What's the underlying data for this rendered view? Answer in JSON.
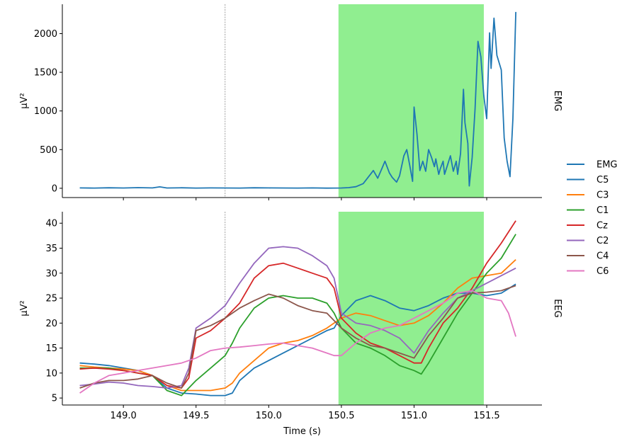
{
  "chart_data": [
    {
      "type": "line",
      "panel_label": "EMG",
      "ylabel": "µV²",
      "xlim": [
        148.58,
        151.88
      ],
      "ylim": [
        -120,
        2380
      ],
      "yticks": [
        0,
        500,
        1000,
        1500,
        2000
      ],
      "xticks": [
        149.0,
        149.5,
        150.0,
        150.5,
        151.0,
        151.5
      ],
      "show_xticklabels": false,
      "vline_x": 149.7,
      "highlight_span": [
        150.48,
        151.48
      ],
      "highlight_color": "#90ee90",
      "series": [
        {
          "name": "EMG",
          "color": "#1f77b4",
          "x": [
            148.7,
            148.8,
            148.9,
            149.0,
            149.1,
            149.2,
            149.25,
            149.3,
            149.4,
            149.5,
            149.6,
            149.7,
            149.8,
            149.9,
            150.0,
            150.1,
            150.2,
            150.3,
            150.4,
            150.5,
            150.55,
            150.6,
            150.65,
            150.7,
            150.72,
            150.75,
            150.78,
            150.8,
            150.83,
            150.85,
            150.88,
            150.9,
            150.93,
            150.95,
            150.97,
            150.99,
            151.0,
            151.02,
            151.04,
            151.06,
            151.08,
            151.1,
            151.12,
            151.14,
            151.15,
            151.17,
            151.18,
            151.2,
            151.21,
            151.23,
            151.25,
            151.27,
            151.29,
            151.3,
            151.32,
            151.34,
            151.35,
            151.37,
            151.38,
            151.4,
            151.42,
            151.44,
            151.46,
            151.48,
            151.5,
            151.52,
            151.53,
            151.55,
            151.57,
            151.6,
            151.62,
            151.64,
            151.66,
            151.68,
            151.7
          ],
          "y": [
            5,
            3,
            6,
            4,
            8,
            5,
            18,
            4,
            6,
            3,
            5,
            4,
            3,
            6,
            5,
            4,
            3,
            5,
            2,
            4,
            8,
            20,
            60,
            180,
            230,
            130,
            260,
            350,
            200,
            140,
            80,
            160,
            420,
            500,
            300,
            90,
            1050,
            700,
            230,
            350,
            220,
            500,
            400,
            280,
            380,
            180,
            250,
            350,
            180,
            300,
            420,
            220,
            350,
            180,
            450,
            1280,
            850,
            580,
            30,
            400,
            1030,
            1900,
            1700,
            1200,
            900,
            2010,
            1550,
            2200,
            1720,
            1530,
            650,
            350,
            150,
            900,
            2280
          ]
        }
      ]
    },
    {
      "type": "line",
      "panel_label": "EEG",
      "xlabel": "Time (s)",
      "ylabel": "µV²",
      "xlim": [
        148.58,
        151.88
      ],
      "ylim": [
        3.6,
        42.3
      ],
      "yticks": [
        5,
        10,
        15,
        20,
        25,
        30,
        35,
        40
      ],
      "xticks": [
        149.0,
        149.5,
        150.0,
        150.5,
        151.0,
        151.5
      ],
      "xticklabels": [
        "149.0",
        "149.5",
        "150.0",
        "150.5",
        "151.0",
        "151.5"
      ],
      "vline_x": 149.7,
      "highlight_span": [
        150.48,
        151.48
      ],
      "highlight_color": "#90ee90",
      "series": [
        {
          "name": "C5",
          "color": "#1f77b4",
          "x": [
            148.7,
            148.8,
            148.9,
            149.0,
            149.1,
            149.2,
            149.3,
            149.4,
            149.5,
            149.6,
            149.7,
            149.75,
            149.8,
            149.9,
            150.0,
            150.1,
            150.2,
            150.3,
            150.4,
            150.45,
            150.5,
            150.6,
            150.7,
            150.8,
            150.9,
            151.0,
            151.1,
            151.2,
            151.3,
            151.4,
            151.5,
            151.6,
            151.7
          ],
          "y": [
            12,
            11.8,
            11.5,
            11,
            10.5,
            9.5,
            7,
            6,
            5.8,
            5.5,
            5.5,
            6,
            8.5,
            11,
            12.5,
            14,
            15.5,
            17,
            18.5,
            19,
            21.5,
            24.5,
            25.5,
            24.5,
            23,
            22.5,
            23.5,
            25,
            26,
            26,
            25.5,
            26,
            27.8
          ]
        },
        {
          "name": "C3",
          "color": "#ff7f0e",
          "x": [
            148.7,
            148.8,
            148.9,
            149.0,
            149.1,
            149.2,
            149.3,
            149.4,
            149.5,
            149.6,
            149.7,
            149.75,
            149.8,
            149.9,
            150.0,
            150.1,
            150.2,
            150.3,
            150.4,
            150.45,
            150.5,
            150.6,
            150.7,
            150.8,
            150.9,
            151.0,
            151.1,
            151.2,
            151.3,
            151.4,
            151.5,
            151.6,
            151.7
          ],
          "y": [
            11.5,
            11.2,
            11,
            10.8,
            10.5,
            9.5,
            7.5,
            6.5,
            6.5,
            6.5,
            7,
            8,
            10,
            12.5,
            15,
            16,
            16.5,
            17.5,
            19,
            20,
            21,
            22,
            21.5,
            20.5,
            19.5,
            20,
            21.5,
            24,
            27,
            29,
            29.5,
            30,
            32.7
          ]
        },
        {
          "name": "C1",
          "color": "#2ca02c",
          "x": [
            148.7,
            148.8,
            148.9,
            149.0,
            149.1,
            149.2,
            149.3,
            149.4,
            149.5,
            149.6,
            149.7,
            149.75,
            149.8,
            149.9,
            150.0,
            150.1,
            150.2,
            150.3,
            150.4,
            150.45,
            150.5,
            150.6,
            150.7,
            150.8,
            150.9,
            151.0,
            151.05,
            151.1,
            151.2,
            151.3,
            151.4,
            151.5,
            151.6,
            151.7
          ],
          "y": [
            11,
            11,
            11,
            10.5,
            10,
            9.5,
            6.5,
            5.5,
            8.5,
            11,
            13.5,
            16,
            19,
            23,
            25,
            25.5,
            25,
            25,
            24,
            22,
            19,
            16,
            15,
            13.5,
            11.5,
            10.5,
            9.8,
            12,
            17,
            22,
            26,
            30,
            33,
            37.8
          ]
        },
        {
          "name": "Cz",
          "color": "#d62728",
          "x": [
            148.7,
            148.8,
            148.9,
            149.0,
            149.1,
            149.2,
            149.3,
            149.4,
            149.45,
            149.5,
            149.6,
            149.7,
            149.8,
            149.9,
            150.0,
            150.1,
            150.2,
            150.3,
            150.4,
            150.45,
            150.5,
            150.6,
            150.7,
            150.8,
            150.9,
            151.0,
            151.05,
            151.1,
            151.2,
            151.3,
            151.4,
            151.5,
            151.6,
            151.7
          ],
          "y": [
            10.8,
            11,
            10.8,
            10.5,
            10,
            9.5,
            7.5,
            7,
            9,
            17,
            18.5,
            21,
            24,
            29,
            31.5,
            32,
            31,
            30,
            29,
            27,
            21,
            18,
            16,
            15,
            13.5,
            12,
            12,
            15,
            20,
            23,
            27,
            32,
            36,
            40.5
          ]
        },
        {
          "name": "C2",
          "color": "#9467bd",
          "x": [
            148.7,
            148.8,
            148.9,
            149.0,
            149.1,
            149.2,
            149.3,
            149.4,
            149.45,
            149.5,
            149.6,
            149.7,
            149.8,
            149.9,
            150.0,
            150.1,
            150.2,
            150.3,
            150.4,
            150.45,
            150.5,
            150.6,
            150.7,
            150.8,
            150.9,
            151.0,
            151.1,
            151.2,
            151.3,
            151.4,
            151.5,
            151.6,
            151.7
          ],
          "y": [
            7.5,
            7.8,
            8.2,
            8,
            7.5,
            7.3,
            7,
            7.5,
            11,
            19,
            21,
            23.5,
            28,
            32,
            35,
            35.3,
            35,
            33.5,
            31.5,
            29,
            22,
            20,
            19.5,
            18.5,
            17,
            14,
            18.5,
            22,
            25,
            26.5,
            28,
            29.5,
            31
          ]
        },
        {
          "name": "C4",
          "color": "#8c564b",
          "x": [
            148.7,
            148.8,
            148.9,
            149.0,
            149.1,
            149.2,
            149.3,
            149.4,
            149.45,
            149.5,
            149.6,
            149.7,
            149.8,
            149.9,
            150.0,
            150.1,
            150.2,
            150.3,
            150.4,
            150.45,
            150.5,
            150.6,
            150.7,
            150.8,
            150.9,
            151.0,
            151.1,
            151.2,
            151.3,
            151.4,
            151.5,
            151.6,
            151.7
          ],
          "y": [
            7,
            8,
            8.5,
            8.5,
            8.8,
            9.5,
            8,
            7,
            10,
            18.5,
            19.5,
            21,
            23,
            24.5,
            25.8,
            25,
            23.5,
            22.5,
            22,
            20.5,
            19,
            17,
            15.5,
            15,
            14,
            13,
            17.5,
            21,
            25,
            26,
            26.2,
            26.5,
            27.5
          ]
        },
        {
          "name": "C6",
          "color": "#e377c2",
          "x": [
            148.7,
            148.8,
            148.9,
            149.0,
            149.1,
            149.2,
            149.3,
            149.4,
            149.5,
            149.6,
            149.7,
            149.8,
            149.9,
            150.0,
            150.1,
            150.2,
            150.3,
            150.4,
            150.45,
            150.5,
            150.6,
            150.7,
            150.8,
            150.9,
            151.0,
            151.1,
            151.2,
            151.3,
            151.4,
            151.5,
            151.6,
            151.65,
            151.7
          ],
          "y": [
            6,
            8,
            9.5,
            10,
            10.5,
            11,
            11.5,
            12,
            13,
            14.5,
            15,
            15.2,
            15.5,
            15.8,
            16,
            15.5,
            15,
            14,
            13.5,
            13.5,
            16,
            18,
            19,
            19.5,
            21,
            22.5,
            24,
            26,
            26.5,
            25,
            24.5,
            22,
            17.3
          ]
        }
      ]
    }
  ],
  "legend": {
    "placement": "right",
    "entries": [
      {
        "name": "EMG",
        "color": "#1f77b4"
      },
      {
        "name": "C5",
        "color": "#1f77b4"
      },
      {
        "name": "C3",
        "color": "#ff7f0e"
      },
      {
        "name": "C1",
        "color": "#2ca02c"
      },
      {
        "name": "Cz",
        "color": "#d62728"
      },
      {
        "name": "C2",
        "color": "#9467bd"
      },
      {
        "name": "C4",
        "color": "#8c564b"
      },
      {
        "name": "C6",
        "color": "#e377c2"
      }
    ]
  }
}
